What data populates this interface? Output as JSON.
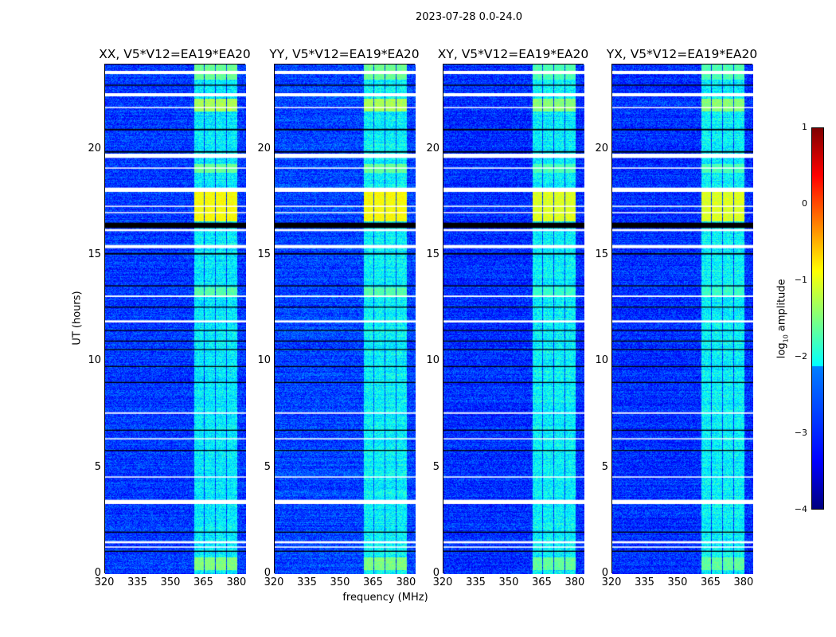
{
  "title": "2023-07-28 0.0-24.0",
  "chart_data": {
    "type": "heatmap",
    "title": "2023-07-28 0.0-24.0",
    "xlabel": "frequency (MHz)",
    "ylabel": "UT (hours)",
    "xlim": [
      320,
      384
    ],
    "ylim": [
      0,
      24
    ],
    "xticks": [
      "320",
      "335",
      "350",
      "365",
      "380"
    ],
    "xtick_values": [
      320,
      335,
      350,
      365,
      380
    ],
    "yticks": [
      "0",
      "5",
      "10",
      "15",
      "20"
    ],
    "ytick_values": [
      0,
      5,
      10,
      15,
      20
    ],
    "colormap": "jet",
    "colorbar": {
      "label": "log10 amplitude",
      "label_main": "log",
      "label_sub": "10",
      "label_rest": " amplitude",
      "range": [
        -4,
        1
      ],
      "ticks": [
        "1",
        "0",
        "−1",
        "−2",
        "−3",
        "−4"
      ],
      "tick_values": [
        1,
        0,
        -1,
        -2,
        -3,
        -4
      ]
    },
    "panels": [
      {
        "title": "XX, V5*V12=EA19*EA20",
        "background_level": -3.1,
        "band_level": -2.2
      },
      {
        "title": "YY, V5*V12=EA19*EA20",
        "background_level": -3.05,
        "band_level": -2.15
      },
      {
        "title": "XY, V5*V12=EA19*EA20",
        "background_level": -3.15,
        "band_level": -2.15
      },
      {
        "title": "YX, V5*V12=EA19*EA20",
        "background_level": -3.15,
        "band_level": -2.15
      }
    ],
    "rfi_subbands_mhz": [
      [
        360.5,
        365
      ],
      [
        365.3,
        370
      ],
      [
        370.3,
        375
      ],
      [
        375.3,
        380
      ]
    ],
    "bright_events": [
      {
        "t": [
          23.3,
          24.0
        ],
        "level": -1.6
      },
      {
        "t": [
          21.8,
          22.4
        ],
        "level": -1.3
      },
      {
        "t": [
          18.9,
          19.3
        ],
        "level": -1.6
      },
      {
        "t": [
          16.6,
          18.0
        ],
        "level": -0.9
      },
      {
        "t": [
          13.1,
          13.5
        ],
        "level": -1.7
      },
      {
        "t": [
          0.2,
          0.8
        ],
        "level": -1.5
      }
    ],
    "flagged_white_hours": [
      [
        23.55,
        23.7
      ],
      [
        22.5,
        22.65
      ],
      [
        21.95,
        22.0
      ],
      [
        19.6,
        19.8
      ],
      [
        19.1,
        19.15
      ],
      [
        18.0,
        18.2
      ],
      [
        17.3,
        17.35
      ],
      [
        17.0,
        17.05
      ],
      [
        16.15,
        16.25
      ],
      [
        15.35,
        15.5
      ],
      [
        13.05,
        13.12
      ],
      [
        11.85,
        11.95
      ],
      [
        7.55,
        7.62
      ],
      [
        6.35,
        6.4
      ],
      [
        4.55,
        4.6
      ],
      [
        3.3,
        3.5
      ],
      [
        1.45,
        1.55
      ],
      [
        1.25,
        1.3
      ]
    ],
    "gap_black_hours": [
      [
        23.0,
        23.05
      ],
      [
        20.9,
        20.97
      ],
      [
        19.85,
        19.92
      ],
      [
        16.3,
        16.55
      ],
      [
        15.05,
        15.12
      ],
      [
        13.55,
        13.6
      ],
      [
        12.55,
        12.6
      ],
      [
        11.45,
        11.5
      ],
      [
        10.95,
        11.0
      ],
      [
        10.55,
        10.6
      ],
      [
        9.75,
        9.8
      ],
      [
        9.0,
        9.05
      ],
      [
        6.75,
        6.8
      ],
      [
        5.8,
        5.85
      ],
      [
        1.95,
        2.0
      ],
      [
        1.05,
        1.1
      ]
    ]
  }
}
